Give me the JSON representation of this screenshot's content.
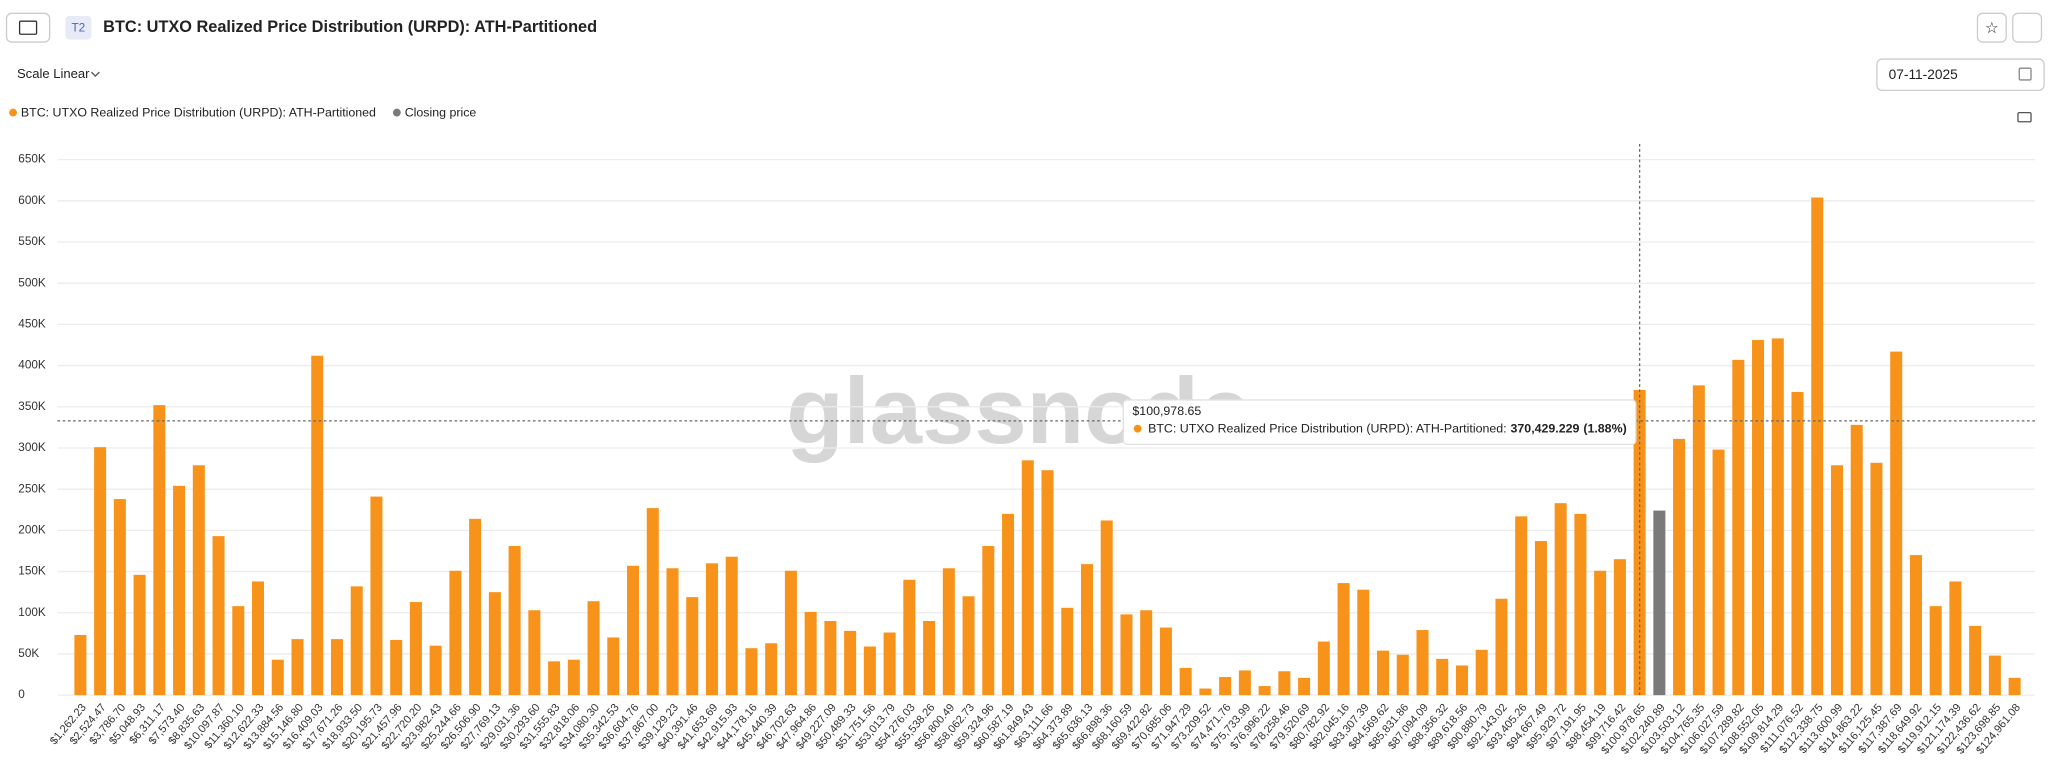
{
  "header": {
    "badge": "T2",
    "title": "BTC: UTXO Realized Price Distribution (URPD): ATH-Partitioned",
    "scale": "Scale Linear",
    "date": "07-11-2025"
  },
  "watermark": "glassnode",
  "tooltip": {
    "title": "$100,978.65",
    "label": "BTC: UTXO Realized Price Distribution (URPD): ATH-Partitioned:",
    "value": "370,429.229",
    "percent": "(1.88%)"
  },
  "chart_data": {
    "type": "bar",
    "categories": [
      "$1,262.23",
      "$2,524.47",
      "$3,786.70",
      "$5,048.93",
      "$6,311.17",
      "$7,573.40",
      "$8,835.63",
      "$10,097.87",
      "$11,360.10",
      "$12,622.33",
      "$13,884.56",
      "$15,146.80",
      "$16,409.03",
      "$17,671.26",
      "$18,933.50",
      "$20,195.73",
      "$21,457.96",
      "$22,720.20",
      "$23,982.43",
      "$25,244.66",
      "$26,506.90",
      "$27,769.13",
      "$29,031.36",
      "$30,293.60",
      "$31,555.83",
      "$32,818.06",
      "$34,080.30",
      "$35,342.53",
      "$36,604.76",
      "$37,867.00",
      "$39,129.23",
      "$40,391.46",
      "$41,653.69",
      "$42,915.93",
      "$44,178.16",
      "$45,440.39",
      "$46,702.63",
      "$47,964.86",
      "$49,227.09",
      "$50,489.33",
      "$51,751.56",
      "$53,013.79",
      "$54,276.03",
      "$55,538.26",
      "$56,800.49",
      "$58,062.73",
      "$59,324.96",
      "$60,587.19",
      "$61,849.43",
      "$63,111.66",
      "$64,373.89",
      "$65,636.13",
      "$66,898.36",
      "$68,160.59",
      "$69,422.82",
      "$70,685.06",
      "$71,947.29",
      "$73,209.52",
      "$74,471.76",
      "$75,733.99",
      "$76,996.22",
      "$78,258.46",
      "$79,520.69",
      "$80,782.92",
      "$82,045.16",
      "$83,307.39",
      "$84,569.62",
      "$85,831.86",
      "$87,094.09",
      "$88,356.32",
      "$89,618.56",
      "$90,880.79",
      "$92,143.02",
      "$93,405.26",
      "$94,667.49",
      "$95,929.72",
      "$97,191.95",
      "$98,454.19",
      "$99,716.42",
      "$100,978.65",
      "$102,240.89",
      "$103,503.12",
      "$104,765.35",
      "$106,027.59",
      "$107,289.82",
      "$108,552.05",
      "$109,814.29",
      "$111,076.52",
      "$112,338.75",
      "$113,600.99",
      "$114,863.22",
      "$116,125.45",
      "$117,387.69",
      "$118,649.92",
      "$119,912.15",
      "$121,174.39",
      "$122,436.62",
      "$123,698.85",
      "$124,961.08"
    ],
    "series": [
      {
        "name": "BTC: UTXO Realized Price Distribution (URPD): ATH-Partitioned",
        "color": "#f7931a",
        "values": [
          73000,
          301000,
          238000,
          146000,
          352000,
          254000,
          279000,
          193000,
          108000,
          138000,
          43000,
          68000,
          412000,
          68000,
          132000,
          241000,
          67000,
          113000,
          60000,
          151000,
          214000,
          125000,
          181000,
          103000,
          41000,
          43000,
          114000,
          70000,
          157000,
          227000,
          154000,
          119000,
          160000,
          168000,
          57000,
          63000,
          151000,
          101000,
          90000,
          78000,
          59000,
          76000,
          140000,
          90000,
          154000,
          120000,
          181000,
          220000,
          285000,
          273000,
          106000,
          159000,
          212000,
          98000,
          103000,
          82000,
          33000,
          8000,
          22000,
          30000,
          11000,
          29000,
          21000,
          65000,
          136000,
          128000,
          54000,
          49000,
          79000,
          44000,
          36000,
          55000,
          117000,
          217000,
          187000,
          233000,
          220000,
          151000,
          165000,
          370429.229,
          null,
          311000,
          376000,
          298000,
          407000,
          431000,
          433000,
          368000,
          604000,
          279000,
          328000,
          282000,
          417000,
          170000,
          108000,
          138000,
          84000,
          48000,
          21000
        ]
      },
      {
        "name": "Closing price",
        "color": "#7a7a7a",
        "values": [
          null,
          null,
          null,
          null,
          null,
          null,
          null,
          null,
          null,
          null,
          null,
          null,
          null,
          null,
          null,
          null,
          null,
          null,
          null,
          null,
          null,
          null,
          null,
          null,
          null,
          null,
          null,
          null,
          null,
          null,
          null,
          null,
          null,
          null,
          null,
          null,
          null,
          null,
          null,
          null,
          null,
          null,
          null,
          null,
          null,
          null,
          null,
          null,
          null,
          null,
          null,
          null,
          null,
          null,
          null,
          null,
          null,
          null,
          null,
          null,
          null,
          null,
          null,
          null,
          null,
          null,
          null,
          null,
          null,
          null,
          null,
          null,
          null,
          null,
          null,
          null,
          null,
          null,
          null,
          null,
          224000,
          null,
          null,
          null,
          null,
          null,
          null,
          null,
          null,
          null,
          null,
          null,
          null,
          null,
          null,
          null,
          null,
          null,
          null
        ]
      }
    ],
    "ylim": [
      0,
      650000
    ],
    "yticks": [
      0,
      {
        "value": 50000,
        "label": "50K"
      },
      {
        "value": 100000,
        "label": "100K"
      },
      {
        "value": 150000,
        "label": "150K"
      },
      {
        "value": 200000,
        "label": "200K"
      },
      {
        "value": 250000,
        "label": "250K"
      },
      {
        "value": 300000,
        "label": "300K"
      },
      {
        "value": 350000,
        "label": "350K"
      },
      {
        "value": 400000,
        "label": "400K"
      },
      {
        "value": 450000,
        "label": "450K"
      },
      {
        "value": 500000,
        "label": "500K"
      },
      {
        "value": 550000,
        "label": "550K"
      },
      {
        "value": 600000,
        "label": "600K"
      },
      {
        "value": 650000,
        "label": "650K"
      }
    ],
    "grid": true
  }
}
